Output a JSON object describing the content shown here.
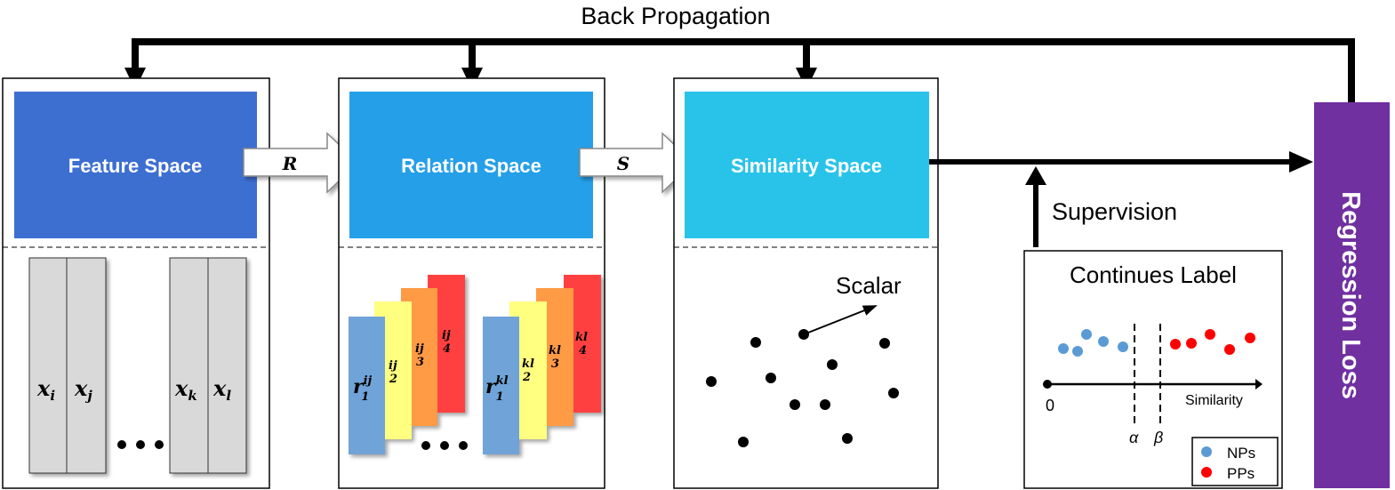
{
  "top": {
    "back_propagation": "Back Propagation"
  },
  "panels": {
    "feature": {
      "title": "Feature Space",
      "labels": [
        "x",
        "x",
        "x",
        "x"
      ],
      "subs": [
        "i",
        "j",
        "k",
        "l"
      ]
    },
    "relation": {
      "title": "Relation Space",
      "group1": {
        "base": "r",
        "sup": "ij",
        "subs": [
          "1",
          "2",
          "3",
          "4"
        ]
      },
      "group2": {
        "base": "r",
        "sup": "kl",
        "subs": [
          "1",
          "2",
          "3",
          "4"
        ]
      }
    },
    "similarity": {
      "title": "Similarity Space",
      "scalar_label": "Scalar"
    }
  },
  "arrows": {
    "r_label": "R",
    "s_label": "S"
  },
  "supervision": "Supervision",
  "label_box": {
    "title": "Continues Label",
    "origin": "0",
    "axis_label": "Similarity",
    "alpha": "α",
    "beta": "β",
    "legend": [
      {
        "name": "NPs",
        "color": "#5B9BD5"
      },
      {
        "name": "PPs",
        "color": "#FF0000"
      }
    ]
  },
  "loss": {
    "title": "Regression Loss"
  },
  "colors": {
    "feature": "#3D6FD1",
    "relation": "#259FE8",
    "similarity": "#29C3EA",
    "loss": "#7030A0",
    "blue_card": "#6FA3D8",
    "yellow_card": "#FFFF80",
    "orange_card": "#FF9A45",
    "red_card": "#FF4040"
  }
}
